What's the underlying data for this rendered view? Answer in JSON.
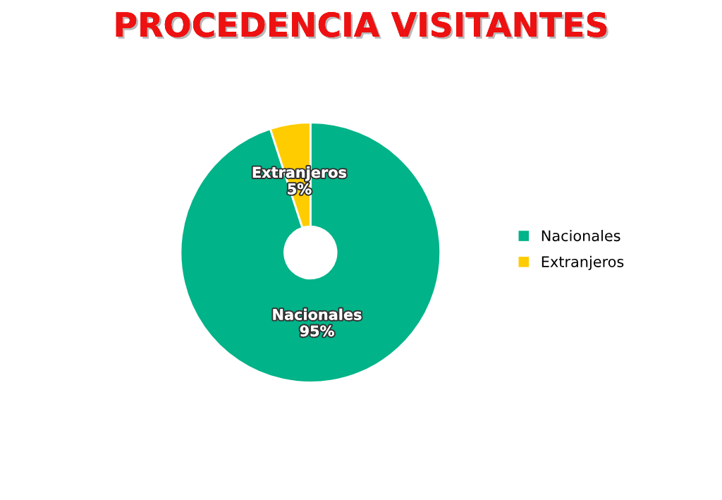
{
  "chart_data": {
    "type": "donut",
    "title": "PROCEDENCIA VISITANTES",
    "categories": [
      "Nacionales",
      "Extranjeros"
    ],
    "values": [
      95,
      5
    ],
    "colors": [
      "#00b388",
      "#ffcc00"
    ],
    "value_labels": [
      "95%",
      "5%"
    ],
    "legend": "right"
  }
}
